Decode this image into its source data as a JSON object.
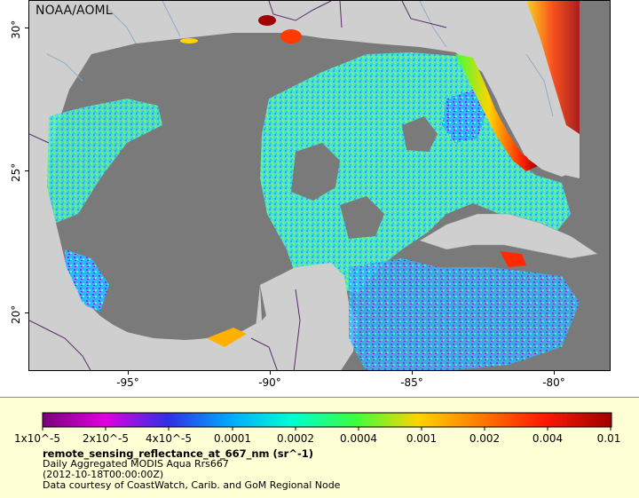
{
  "map": {
    "credit": "NOAA/AOML",
    "x_ticks": [
      "-95°",
      "-90°",
      "-85°",
      "-80°"
    ],
    "y_ticks": [
      "30°",
      "25°",
      "20°"
    ],
    "colors": {
      "land": "#cfcfcf",
      "cloud_mask": "#7a7a7a",
      "rivers": "#89a9c9",
      "borders": "#5b2a6b"
    }
  },
  "legend": {
    "colorbar_labels": [
      "1x10^-5",
      "2x10^-5",
      "4x10^-5",
      "0.0001",
      "0.0002",
      "0.0004",
      "0.001",
      "0.002",
      "0.004",
      "0.01"
    ],
    "variable_title": "remote_sensing_reflectance_at_667_nm (sr^-1)",
    "description": "Daily Aggregated MODIS Aqua Rrs667",
    "timestamp": "(2012-10-18T00:00:00Z)",
    "source": "Data courtesy of CoastWatch, Carib. and GoM Regional Node",
    "colormap": [
      "#7a007a",
      "#e000e0",
      "#2f2fe6",
      "#00aaff",
      "#00ffd0",
      "#3cff3c",
      "#ffd400",
      "#ff7a00",
      "#ff1a00",
      "#a00000"
    ]
  }
}
